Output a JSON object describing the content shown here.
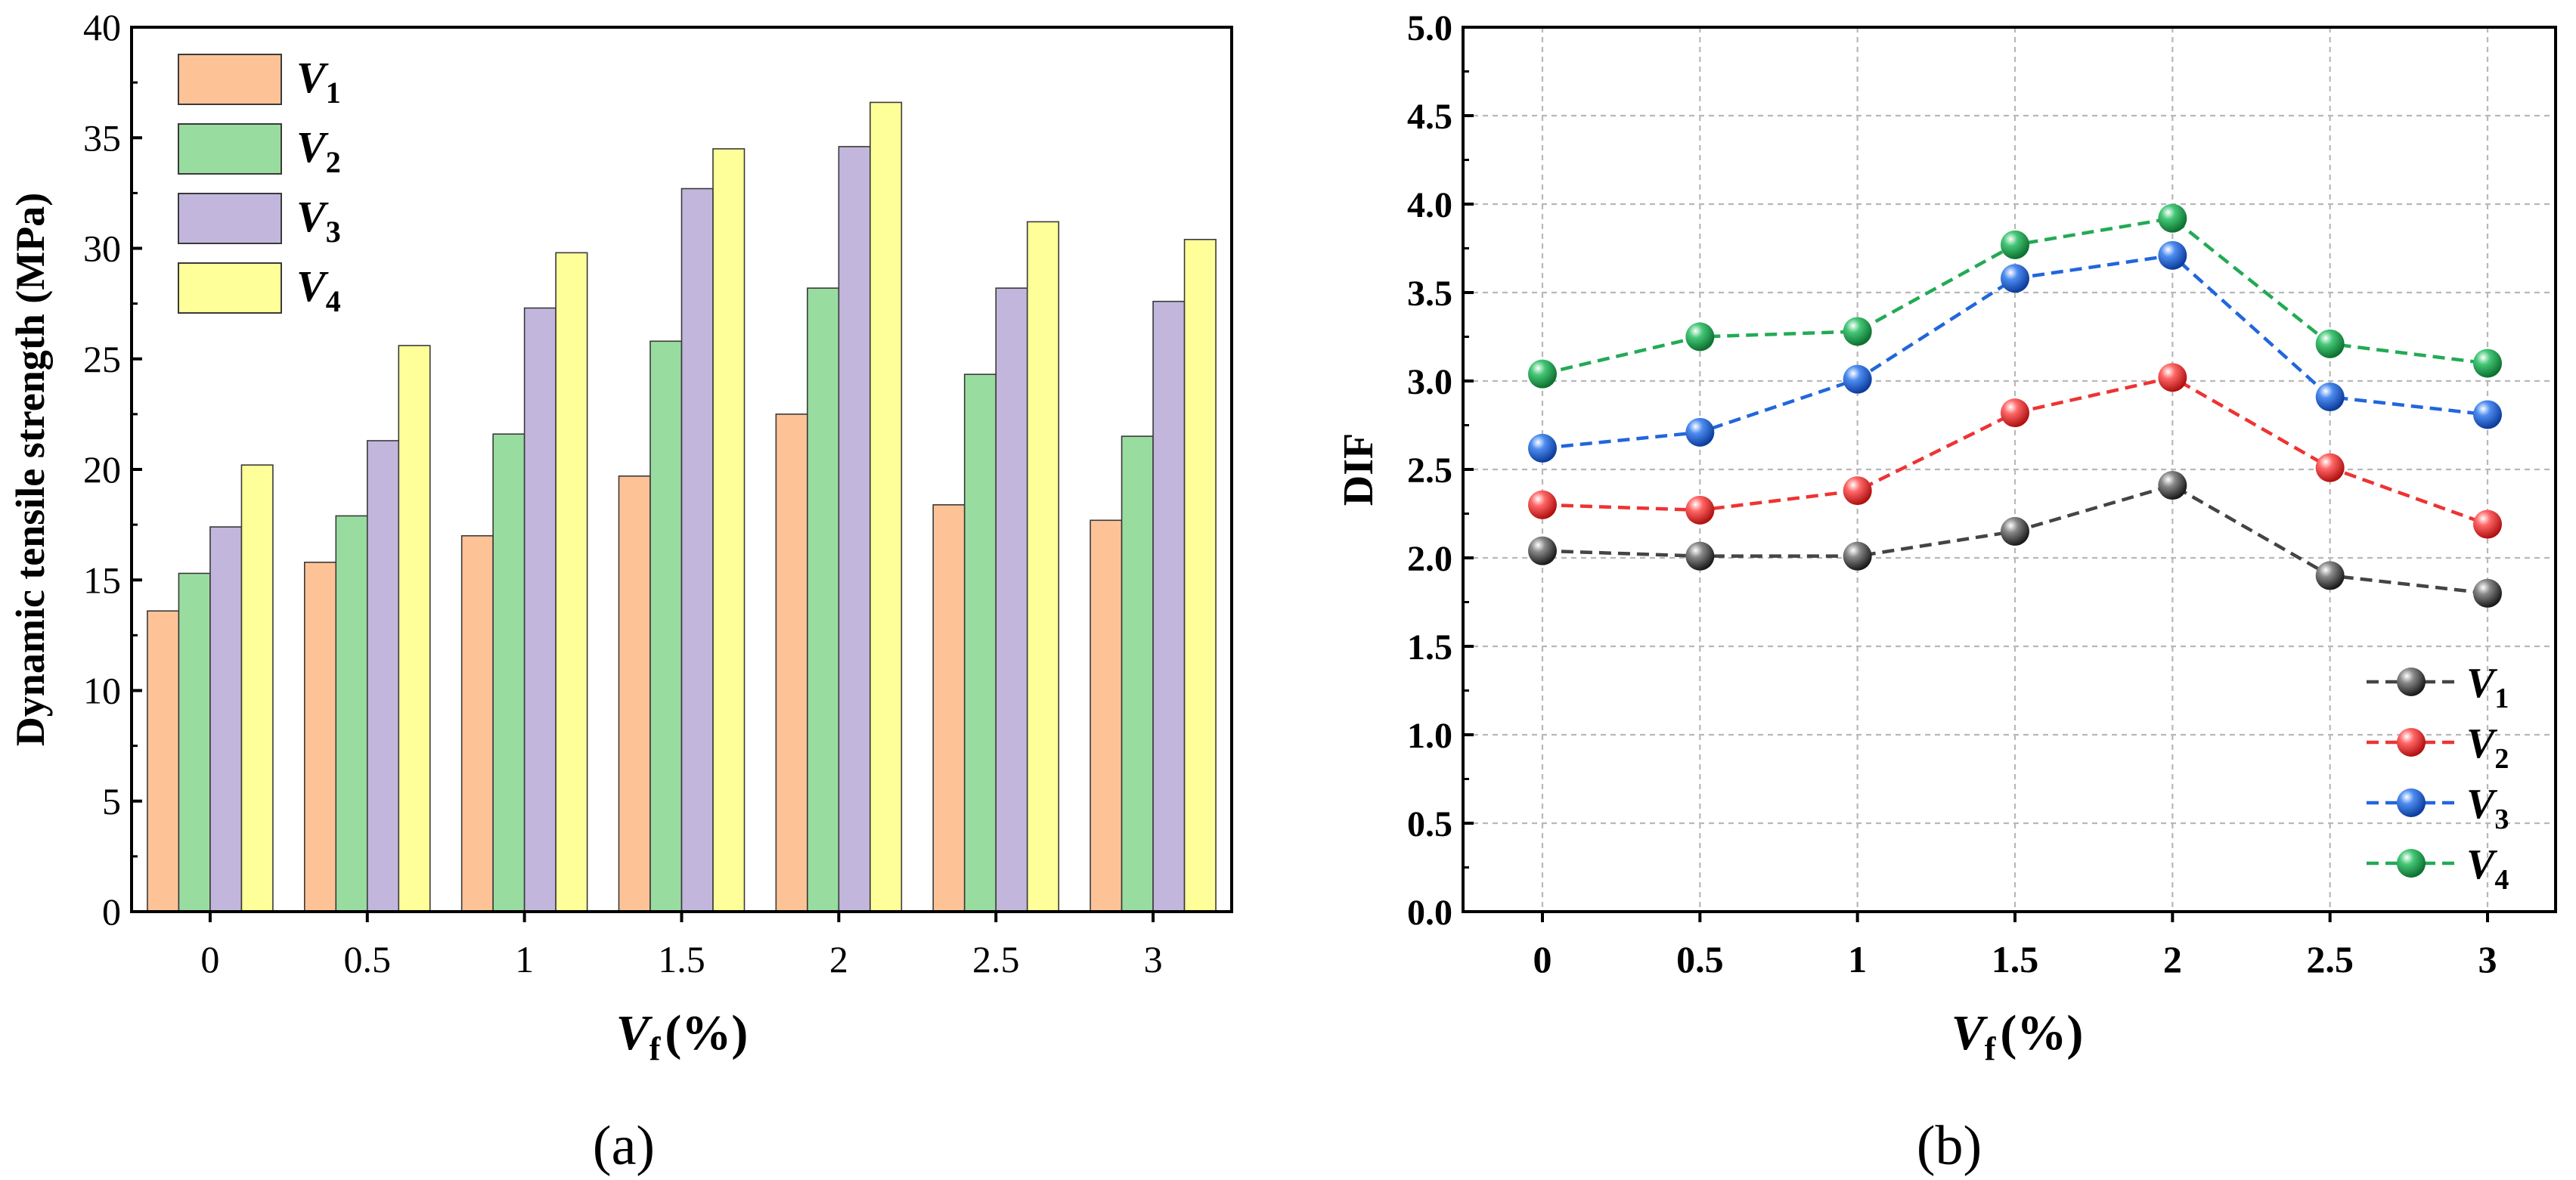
{
  "chart_data": [
    {
      "type": "bar",
      "panel_label": "(a)",
      "xlabel_main": "V",
      "xlabel_sub": "f",
      "xlabel_unit": "(%)",
      "ylabel": "Dynamic tensile strength (MPa)",
      "categories": [
        "0",
        "0.5",
        "1",
        "1.5",
        "2",
        "2.5",
        "3"
      ],
      "ylim": [
        0,
        40
      ],
      "yticks": [
        "0",
        "5",
        "10",
        "15",
        "20",
        "25",
        "30",
        "35",
        "40"
      ],
      "legend_position": "top-left",
      "series": [
        {
          "name": "V",
          "sub": "1",
          "color": "#fdc397",
          "values": [
            13.6,
            15.8,
            17.0,
            19.7,
            22.5,
            18.4,
            17.7
          ]
        },
        {
          "name": "V",
          "sub": "2",
          "color": "#99dca0",
          "values": [
            15.3,
            17.9,
            21.6,
            25.8,
            28.2,
            24.3,
            21.5
          ]
        },
        {
          "name": "V",
          "sub": "3",
          "color": "#c2b6dc",
          "values": [
            17.4,
            21.3,
            27.3,
            32.7,
            34.6,
            28.2,
            27.6
          ]
        },
        {
          "name": "V",
          "sub": "4",
          "color": "#ffff99",
          "values": [
            20.2,
            25.6,
            29.8,
            34.5,
            36.6,
            31.2,
            30.4
          ]
        }
      ]
    },
    {
      "type": "line",
      "panel_label": "(b)",
      "xlabel_main": "V",
      "xlabel_sub": "f",
      "xlabel_unit": "(%)",
      "ylabel": "DIF",
      "categories": [
        "0",
        "0.5",
        "1",
        "1.5",
        "2",
        "2.5",
        "3"
      ],
      "ylim": [
        0,
        5
      ],
      "yticks": [
        "0.0",
        "0.5",
        "1.0",
        "1.5",
        "2.0",
        "2.5",
        "3.0",
        "3.5",
        "4.0",
        "4.5",
        "5.0"
      ],
      "grid": true,
      "legend_position": "bottom-right",
      "series": [
        {
          "name": "V",
          "sub": "1",
          "color": "#444444",
          "values": [
            2.04,
            2.01,
            2.01,
            2.15,
            2.41,
            1.9,
            1.8
          ]
        },
        {
          "name": "V",
          "sub": "2",
          "color": "#ee3333",
          "values": [
            2.3,
            2.27,
            2.38,
            2.82,
            3.02,
            2.51,
            2.19
          ]
        },
        {
          "name": "V",
          "sub": "3",
          "color": "#2266dd",
          "values": [
            2.62,
            2.71,
            3.01,
            3.58,
            3.71,
            2.91,
            2.81
          ]
        },
        {
          "name": "V",
          "sub": "4",
          "color": "#22aa55",
          "values": [
            3.04,
            3.25,
            3.28,
            3.77,
            3.92,
            3.21,
            3.1
          ]
        }
      ]
    }
  ]
}
